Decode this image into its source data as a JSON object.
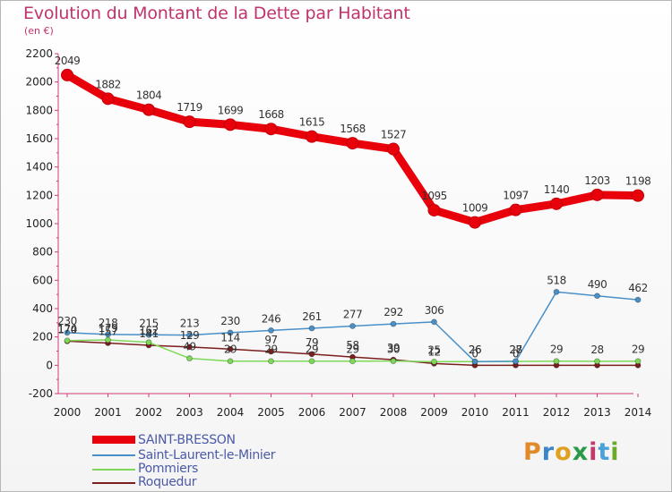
{
  "header": {
    "title": "Evolution du Montant de la Dette par Habitant",
    "subtitle": "(en €)"
  },
  "logo": {
    "letters": [
      "P",
      "r",
      "o",
      "x",
      "i",
      "t",
      "i"
    ],
    "colors": [
      "#e08a2a",
      "#3a86c8",
      "#e0a020",
      "#2a9a4a",
      "#c03a6a",
      "#4aa0d8",
      "#6aaa2a"
    ]
  },
  "chart_data": {
    "type": "line",
    "title": "Evolution du Montant de la Dette par Habitant",
    "ylabel": "(en €)",
    "xlabel": "",
    "x": [
      "2000",
      "2001",
      "2002",
      "2003",
      "2004",
      "2005",
      "2006",
      "2007",
      "2008",
      "2009",
      "2010",
      "2011",
      "2012",
      "2013",
      "2014"
    ],
    "ylim": [
      -200,
      2200
    ],
    "yticks": [
      "-200",
      "0",
      "200",
      "400",
      "600",
      "800",
      "1000",
      "1200",
      "1400",
      "1600",
      "1800",
      "2000",
      "2200"
    ],
    "grid": false,
    "legend_position": "bottom-left",
    "series": [
      {
        "name": "SAINT-BRESSON",
        "color": "#e8000b",
        "values": [
          2049,
          1882,
          1804,
          1719,
          1699,
          1668,
          1615,
          1568,
          1527,
          1095,
          1009,
          1097,
          1140,
          1203,
          1198
        ],
        "labels": [
          "2049",
          "1882",
          "1804",
          "1719",
          "1699",
          "1668",
          "1615",
          "1568",
          "1527",
          "1095",
          "1009",
          "1097",
          "1140",
          "1203",
          "1198"
        ]
      },
      {
        "name": "Saint-Laurent-le-Minier",
        "color": "#4a90c8",
        "values": [
          230,
          218,
          215,
          213,
          230,
          246,
          261,
          277,
          292,
          306,
          26,
          28,
          518,
          490,
          462
        ],
        "labels": [
          "230",
          "218",
          "215",
          "213",
          "230",
          "246",
          "261",
          "277",
          "292",
          "306",
          "26",
          "28",
          "518",
          "490",
          "462"
        ]
      },
      {
        "name": "Pommiers",
        "color": "#7dd858",
        "values": [
          174,
          179,
          162,
          49,
          29,
          29,
          29,
          29,
          30,
          25,
          26,
          27,
          29,
          28,
          29
        ],
        "labels": [
          "174",
          "179",
          "162",
          "49",
          "29",
          "29",
          "29",
          "29",
          "30",
          "25",
          "26",
          "27",
          "29",
          "28",
          "29"
        ]
      },
      {
        "name": "Roquedur",
        "color": "#7a1e1e",
        "values": [
          170,
          157,
          141,
          129,
          114,
          97,
          79,
          58,
          39,
          12,
          0,
          0,
          0,
          0,
          0
        ],
        "labels": [
          "170",
          "157",
          "141",
          "129",
          "114",
          "97",
          "79",
          "58",
          "39",
          "12",
          "0",
          "0",
          "",
          "",
          ""
        ]
      }
    ]
  }
}
